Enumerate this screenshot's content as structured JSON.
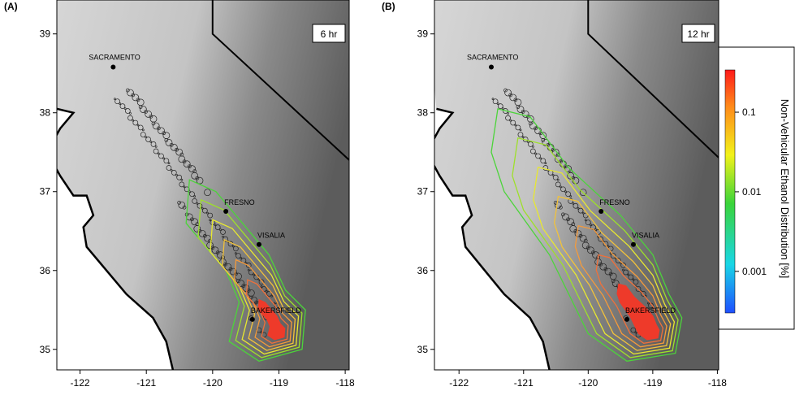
{
  "panels": [
    {
      "label": "(A)",
      "time": "6 hr",
      "xlim": [
        -122.35,
        -117.94
      ],
      "ylim": [
        34.74,
        39.43
      ],
      "xticks": [
        -122,
        -121,
        -120,
        -119,
        -118
      ],
      "yticks": [
        35,
        36,
        37,
        38,
        39
      ],
      "cities": [
        {
          "name": "SACRAMENTO",
          "lon": -121.5,
          "lat": 38.58
        },
        {
          "name": "FRESNO",
          "lon": -119.8,
          "lat": 36.75
        },
        {
          "name": "VISALIA",
          "lon": -119.3,
          "lat": 36.33
        },
        {
          "name": "BAKERSFIELD",
          "lon": -119.4,
          "lat": 35.38
        }
      ]
    },
    {
      "label": "(B)",
      "time": "12 hr",
      "xlim": [
        -122.38,
        -117.98
      ],
      "ylim": [
        34.74,
        39.43
      ],
      "xticks": [
        -122,
        -121,
        -120,
        -119,
        -118
      ],
      "yticks": [
        35,
        36,
        37,
        38,
        39
      ],
      "cities": [
        {
          "name": "SACRAMENTO",
          "lon": -121.5,
          "lat": 38.58
        },
        {
          "name": "FRESNO",
          "lon": -119.8,
          "lat": 36.75
        },
        {
          "name": "VISALIA",
          "lon": -119.3,
          "lat": 36.33
        },
        {
          "name": "BAKERSFIELD",
          "lon": -119.4,
          "lat": 35.38
        }
      ]
    }
  ],
  "colorbar": {
    "label": "Non-Vehicular Ethanol Distribution [%]",
    "scale": "log",
    "lim": [
      0.0003,
      0.34
    ],
    "ticks": [
      0.1,
      0.01,
      0.001
    ]
  }
}
